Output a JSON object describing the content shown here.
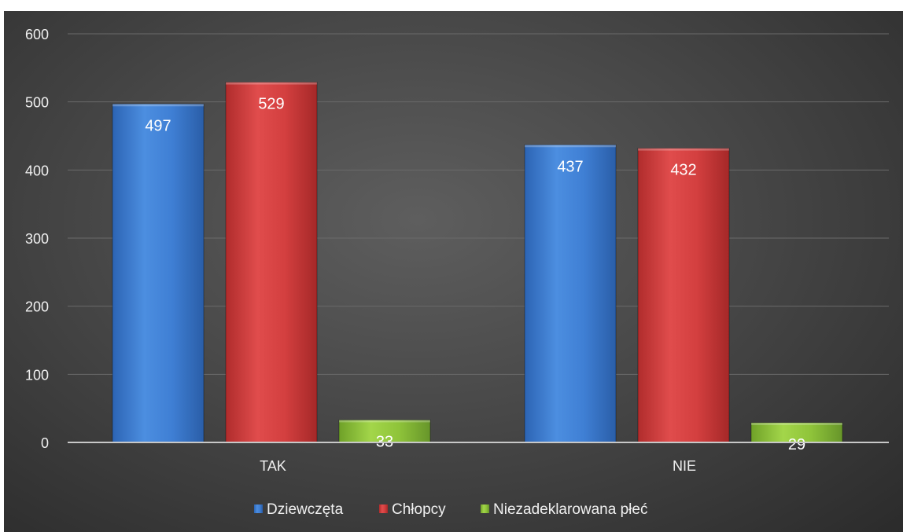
{
  "chart_data": {
    "type": "bar",
    "title": "",
    "xlabel": "",
    "ylabel": "",
    "categories": [
      "TAK",
      "NIE"
    ],
    "series": [
      {
        "name": "Dziewczęta",
        "values": [
          497,
          437
        ],
        "color": "#3f7fd4"
      },
      {
        "name": "Chłopcy",
        "values": [
          529,
          432
        ],
        "color": "#d33f3f"
      },
      {
        "name": "Niezadeklarowana płeć",
        "values": [
          33,
          29
        ],
        "color": "#8fc43a"
      }
    ],
    "ylim": [
      0,
      600
    ],
    "yticks": [
      0,
      100,
      200,
      300,
      400,
      500,
      600
    ],
    "grid": true,
    "legend": "bottom"
  }
}
